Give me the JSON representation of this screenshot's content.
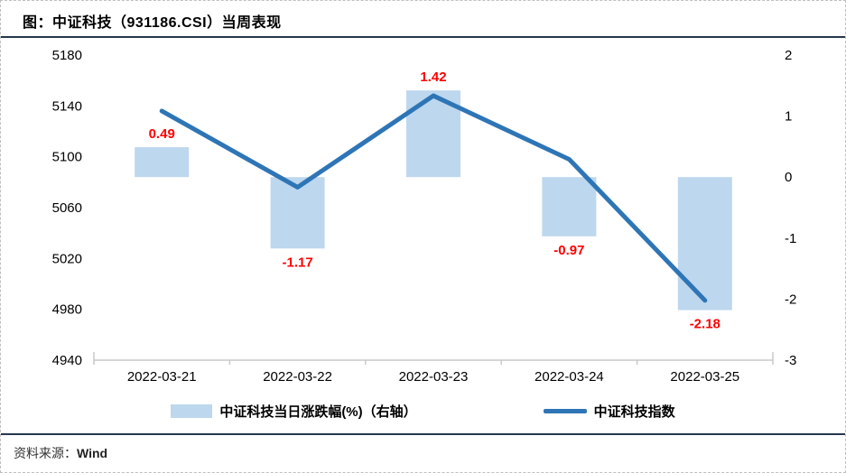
{
  "header": {
    "title": "图：中证科技（931186.CSI）当周表现"
  },
  "footer": {
    "prefix": "资料来源：",
    "source": "Wind"
  },
  "colors": {
    "bar_fill": "#BDD7EE",
    "line_stroke": "#2E75B6",
    "data_label": "#FF0000",
    "axis_line": "#c9c9c9",
    "axis_text": "#000000",
    "rule": "#26374b"
  },
  "chart_data": {
    "type": "bar",
    "subtype": "bar-line-combo",
    "title": "图：中证科技（931186.CSI）当周表现",
    "categories": [
      "2022-03-21",
      "2022-03-22",
      "2022-03-23",
      "2022-03-24",
      "2022-03-25"
    ],
    "series": [
      {
        "name": "中证科技当日涨跌幅(%)（右轴）",
        "type": "bar",
        "axis": "right",
        "values": [
          0.49,
          -1.17,
          1.42,
          -0.97,
          -2.18
        ],
        "labels": [
          "0.49",
          "-1.17",
          "1.42",
          "-0.97",
          "-2.18"
        ],
        "color": "#BDD7EE",
        "label_color": "#FF0000"
      },
      {
        "name": "中证科技指数",
        "type": "line",
        "axis": "left",
        "values": [
          5136,
          5076,
          5148,
          5098,
          4987
        ],
        "color": "#2E75B6"
      }
    ],
    "left_axis": {
      "min": 4940,
      "max": 5180,
      "step": 40,
      "ticks": [
        5180,
        5140,
        5100,
        5060,
        5020,
        4980,
        4940
      ]
    },
    "right_axis": {
      "min": -3,
      "max": 2,
      "step": 1,
      "ticks": [
        2,
        1,
        0,
        -1,
        -2,
        -3
      ]
    },
    "grid": false,
    "legend_position": "bottom",
    "source": "Wind"
  }
}
